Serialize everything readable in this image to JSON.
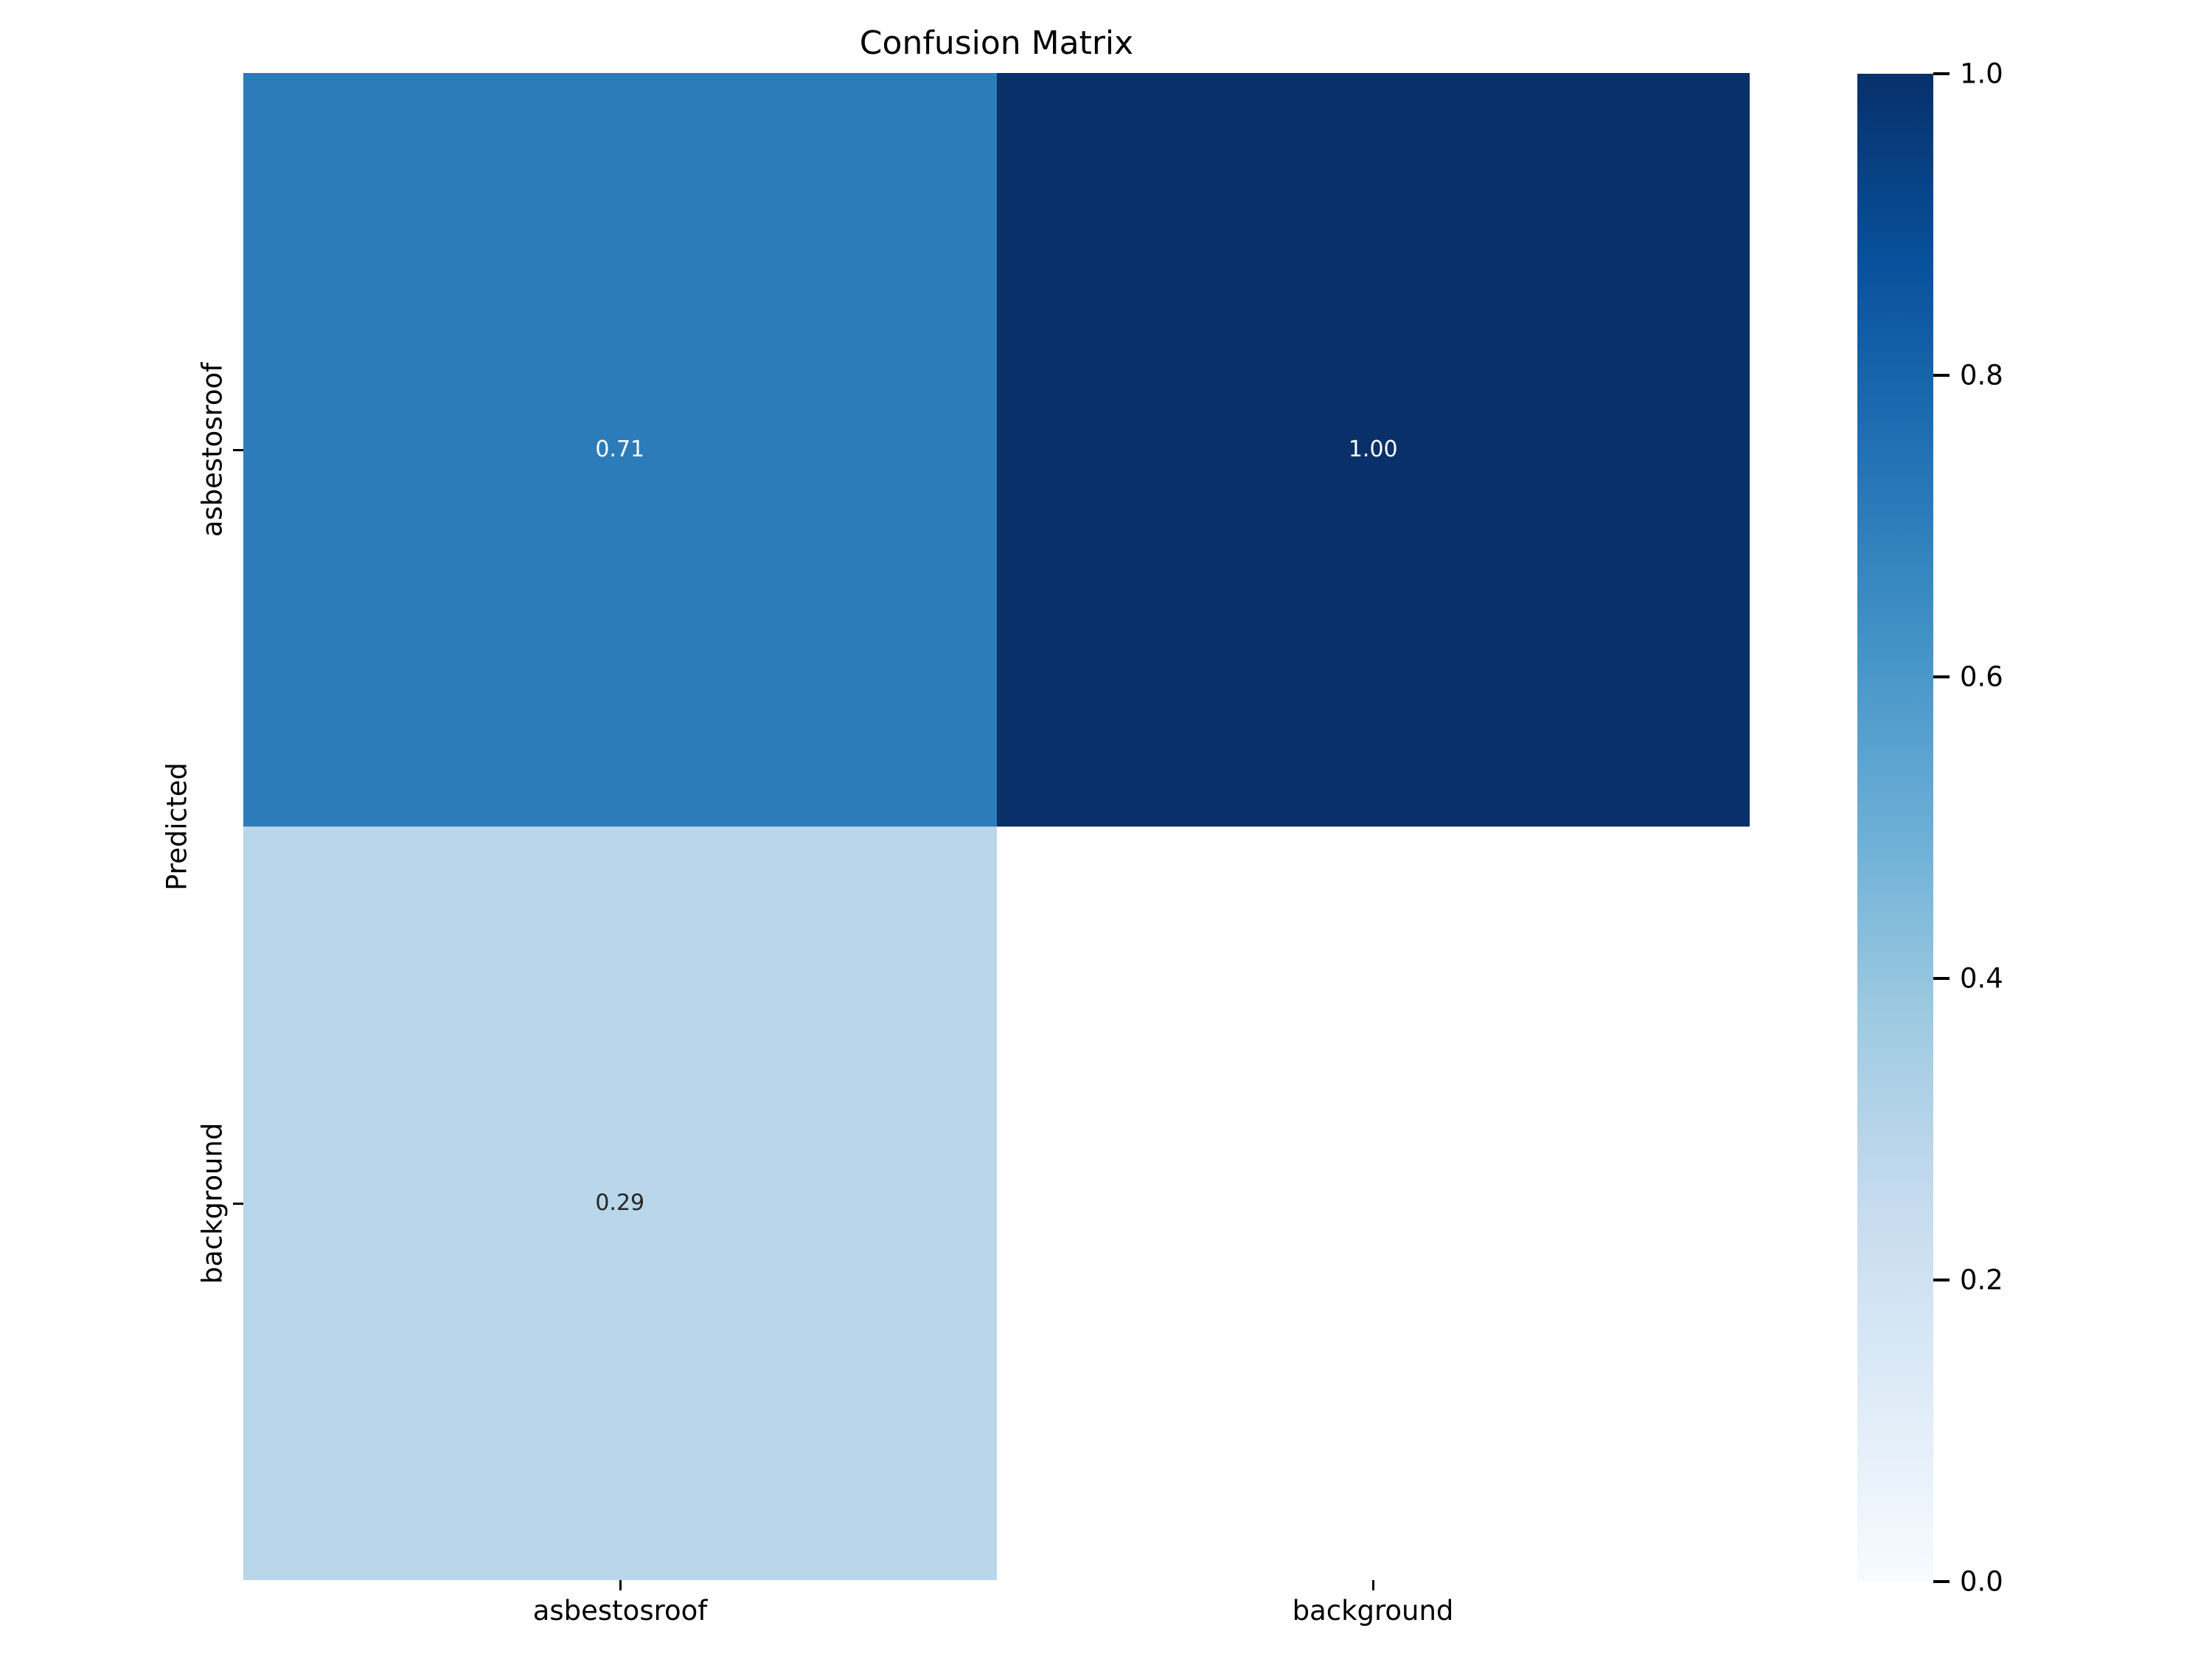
{
  "chart_data": {
    "type": "heatmap",
    "title": "Confusion Matrix",
    "xlabel": "",
    "ylabel": "Predicted",
    "x_categories": [
      "asbestosroof",
      "background"
    ],
    "y_categories": [
      "asbestosroof",
      "background"
    ],
    "matrix_rows": [
      "asbestosroof",
      "background"
    ],
    "matrix_cols": [
      "asbestosroof",
      "background"
    ],
    "matrix": [
      [
        0.71,
        1.0
      ],
      [
        0.29,
        null
      ]
    ],
    "cells": [
      {
        "row": "asbestosroof",
        "col": "asbestosroof",
        "value": "0.71",
        "color": "#2d7cba",
        "text_color": "#ffffff"
      },
      {
        "row": "asbestosroof",
        "col": "background",
        "value": "1.00",
        "color": "#093069",
        "text_color": "#ffffff"
      },
      {
        "row": "background",
        "col": "asbestosroof",
        "value": "0.29",
        "color": "#b9d6ea",
        "text_color": "#262626"
      },
      {
        "row": "background",
        "col": "background",
        "value": "",
        "color": "#ffffff",
        "text_color": "#262626"
      }
    ],
    "colormap": "Blues",
    "grid": false,
    "colorbar": {
      "position": "right",
      "range": [
        0.0,
        1.0
      ],
      "ticks": [
        "1.0",
        "0.8",
        "0.6",
        "0.4",
        "0.2",
        "0.0"
      ],
      "color_max": "#08306b",
      "color_min": "#f7fbff",
      "gradient_css": "linear-gradient(to bottom, #08306b 0%, #08519c 12.5%, #2171b5 25%, #4292c6 37.5%, #6baed6 50%, #9ecae1 62.5%, #c6dbef 75%, #deebf7 87.5%, #f7fbff 100%)"
    }
  }
}
